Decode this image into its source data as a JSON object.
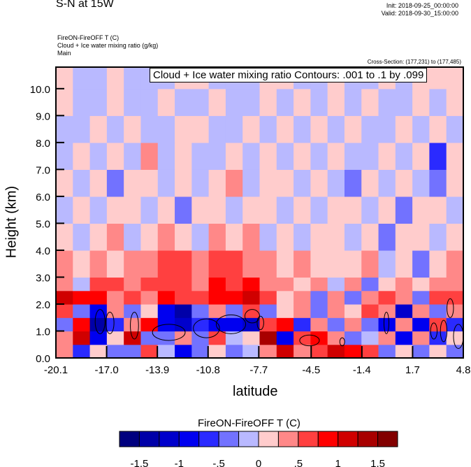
{
  "header": {
    "title": "S-N at 15W",
    "init": "Init: 2018-09-25_00:00:00",
    "valid": "Valid: 2018-09-30_15:00:00",
    "field1": "FireON-FireOFF T   (C)",
    "field2": "Cloud + Ice water mixing ratio   (g/kg)",
    "field3": "Main",
    "cross_section": "Cross-Section: (177,231) to (177,485)"
  },
  "chart_data": {
    "type": "heatmap",
    "title": "S-N at 15W",
    "xlabel": "latitude",
    "ylabel": "Height (km)",
    "xlim": [
      -20.1,
      4.8
    ],
    "ylim": [
      0,
      10.8
    ],
    "xticks": [
      "-20.1",
      "-17.0",
      "-13.9",
      "-10.8",
      "-7.7",
      "-4.5",
      "-1.4",
      "1.7",
      "4.8"
    ],
    "xtick_values": [
      -20.1,
      -17.0,
      -13.9,
      -10.8,
      -7.7,
      -4.5,
      -1.4,
      1.7,
      4.8
    ],
    "yticks": [
      "0.0",
      "1.0",
      "2.0",
      "3.0",
      "4.0",
      "5.0",
      "6.0",
      "7.0",
      "8.0",
      "9.0",
      "10.0"
    ],
    "ytick_values": [
      0,
      1,
      2,
      3,
      4,
      5,
      6,
      7,
      8,
      9,
      10
    ],
    "contour_label": "Cloud + Ice water mixing ratio Contours: .001 to .1 by .099",
    "row_heights": [
      0,
      0.5,
      1.0,
      1.5,
      2.0,
      2.5,
      3.0,
      4.0,
      5.0,
      6.0,
      7.0,
      8.0,
      9.0,
      10.0,
      10.8
    ],
    "grid": [
      [
        0.3,
        -0.6,
        0.2,
        -0.3,
        -0.5,
        0.6,
        -0.2,
        -0.8,
        -0.3,
        0.2,
        -0.4,
        -0.2,
        0.3,
        1.2,
        0.4,
        0.6,
        1.0,
        0.8,
        0.5,
        -0.3,
        0.2,
        -0.3,
        0.2,
        -0.5
      ],
      [
        0.4,
        1.0,
        -0.8,
        0.2,
        1.1,
        -0.4,
        -0.5,
        0.3,
        -0.3,
        0.5,
        -0.2,
        0.1,
        1.3,
        -1.0,
        0.5,
        0.8,
        0.3,
        -0.4,
        -0.2,
        0.4,
        -1.0,
        0.3,
        -0.6,
        0.2
      ],
      [
        -0.4,
        0.8,
        -1.5,
        -0.6,
        0.3,
        0.9,
        -0.8,
        -1.2,
        -0.6,
        -1.0,
        -0.8,
        -1.2,
        0.5,
        0.8,
        -0.6,
        0.4,
        -0.3,
        0.3,
        -0.5,
        -1.0,
        0.4,
        -0.8,
        0.5,
        -0.6
      ],
      [
        0.6,
        -0.3,
        -0.8,
        0.3,
        -0.5,
        0.2,
        -1.0,
        -1.3,
        -0.5,
        0.3,
        -0.4,
        0.6,
        -0.3,
        0.2,
        0.4,
        -0.3,
        0.3,
        0.2,
        0.5,
        0.3,
        -1.2,
        0.4,
        -0.5,
        0.3
      ],
      [
        1.0,
        0.8,
        0.9,
        0.4,
        0.6,
        0.3,
        0.8,
        0.5,
        0.6,
        0.9,
        0.8,
        1.0,
        0.6,
        0.2,
        0.3,
        -0.3,
        0.4,
        -0.5,
        0.3,
        0.6,
        0.3,
        -0.4,
        0.5,
        0.6
      ],
      [
        0.4,
        -0.2,
        0.6,
        0.5,
        0.3,
        0.6,
        0.5,
        0.7,
        0.4,
        0.8,
        0.7,
        0.9,
        0.4,
        0.3,
        0.2,
        0.3,
        -0.2,
        0.3,
        -0.3,
        0.2,
        0.3,
        0.2,
        0.3,
        0.4
      ],
      [
        0.3,
        0.2,
        0.3,
        0.2,
        0.4,
        0.3,
        0.6,
        0.5,
        0.3,
        0.6,
        0.5,
        0.4,
        0.3,
        0.2,
        0.3,
        0.2,
        0.1,
        0.2,
        0.3,
        -0.2,
        0.2,
        -0.3,
        0.2,
        0.3
      ],
      [
        0.2,
        -0.2,
        0.2,
        0.3,
        -0.2,
        0.2,
        0.3,
        0.2,
        -0.2,
        0.3,
        0.2,
        0.3,
        -0.2,
        0.2,
        -0.2,
        0.2,
        0.1,
        -0.2,
        0.2,
        -0.3,
        0.2,
        0.2,
        -0.2,
        0.2
      ],
      [
        -0.2,
        0.2,
        -0.2,
        0.2,
        0.2,
        -0.2,
        0.2,
        -0.3,
        0.2,
        0.2,
        -0.2,
        0.2,
        0.2,
        -0.2,
        0.2,
        -0.2,
        0.2,
        0.2,
        -0.2,
        0.2,
        -0.3,
        0.2,
        0.2,
        -0.2
      ],
      [
        0.2,
        -0.2,
        0.2,
        -0.3,
        0.2,
        0.2,
        -0.2,
        0.2,
        -0.2,
        0.2,
        0.3,
        -0.2,
        0.2,
        0.2,
        -0.2,
        0.2,
        -0.2,
        -0.3,
        0.2,
        -0.2,
        0.2,
        -0.2,
        -0.3,
        0.2
      ],
      [
        -0.2,
        0.2,
        -0.2,
        0.2,
        -0.2,
        0.3,
        -0.2,
        0.2,
        -0.2,
        -0.2,
        0.2,
        -0.2,
        0.2,
        -0.2,
        0.2,
        -0.2,
        0.2,
        -0.2,
        -0.2,
        0.2,
        -0.2,
        0.2,
        -0.6,
        0.2
      ],
      [
        -0.2,
        -0.2,
        0.2,
        -0.2,
        0.2,
        -0.2,
        -0.2,
        0.2,
        0.2,
        -0.2,
        -0.2,
        0.2,
        -0.2,
        0.2,
        -0.2,
        0.2,
        -0.2,
        0.2,
        -0.2,
        -0.2,
        0.2,
        -0.2,
        0.2,
        -0.2
      ],
      [
        0.2,
        -0.2,
        -0.2,
        0.2,
        -0.2,
        -0.2,
        0.2,
        -0.2,
        -0.2,
        0.2,
        -0.2,
        -0.2,
        0.2,
        -0.2,
        0.2,
        -0.2,
        0.2,
        -0.2,
        0.2,
        -0.2,
        -0.2,
        0.2,
        -0.2,
        0.2
      ],
      [
        0.2,
        -0.2,
        -0.2,
        0.2,
        -0.2,
        -0.2,
        -0.2,
        0.2,
        0.2,
        -0.2,
        -0.2,
        -0.2,
        0.2,
        0.2,
        -0.2,
        -0.2,
        0.2,
        -0.2,
        -0.2,
        0.2,
        -0.2,
        0.2,
        0.2,
        0.2
      ]
    ],
    "contours": [
      {
        "lat": -17.4,
        "h": 1.35,
        "dlat": 0.3,
        "dh": 0.45
      },
      {
        "lat": -16.8,
        "h": 1.3,
        "dlat": 0.25,
        "dh": 0.4
      },
      {
        "lat": -15.3,
        "h": 1.2,
        "dlat": 0.25,
        "dh": 0.5
      },
      {
        "lat": -13.2,
        "h": 0.95,
        "dlat": 1.0,
        "dh": 0.3
      },
      {
        "lat": -10.9,
        "h": 1.1,
        "dlat": 0.8,
        "dh": 0.35
      },
      {
        "lat": -9.4,
        "h": 1.25,
        "dlat": 0.9,
        "dh": 0.35
      },
      {
        "lat": -8.1,
        "h": 1.55,
        "dlat": 0.45,
        "dh": 0.25
      },
      {
        "lat": -7.6,
        "h": 1.3,
        "dlat": 0.2,
        "dh": 0.25
      },
      {
        "lat": -4.6,
        "h": 0.65,
        "dlat": 0.6,
        "dh": 0.2
      },
      {
        "lat": -2.6,
        "h": 0.6,
        "dlat": 0.15,
        "dh": 0.15
      },
      {
        "lat": 0.1,
        "h": 1.3,
        "dlat": 0.15,
        "dh": 0.4
      },
      {
        "lat": 3.0,
        "h": 1.0,
        "dlat": 0.2,
        "dh": 0.3
      },
      {
        "lat": 3.6,
        "h": 1.0,
        "dlat": 0.2,
        "dh": 0.4
      },
      {
        "lat": 4.0,
        "h": 1.85,
        "dlat": 0.2,
        "dh": 0.35
      },
      {
        "lat": 4.5,
        "h": 0.8,
        "dlat": 0.3,
        "dh": 0.45
      }
    ],
    "colorbar": {
      "title": "FireON-FireOFF T  (C)",
      "levels": [
        -1.75,
        -1.5,
        -1.25,
        -1,
        -0.75,
        -0.5,
        -0.25,
        0,
        0.25,
        0.5,
        0.75,
        1,
        1.25,
        1.5,
        1.75
      ],
      "colors": [
        "#00007f",
        "#0000a8",
        "#0000cc",
        "#0000f0",
        "#2a2aff",
        "#7272ff",
        "#b9b9ff",
        "#ffcccc",
        "#ff8888",
        "#ff4040",
        "#ff0000",
        "#d00000",
        "#a80000",
        "#820000"
      ],
      "labels": [
        "-1.5",
        "-1",
        "-.5",
        "0",
        ".5",
        "1",
        "1.5"
      ],
      "label_values": [
        -1.5,
        -1,
        -0.5,
        0,
        0.5,
        1,
        1.5
      ]
    }
  }
}
